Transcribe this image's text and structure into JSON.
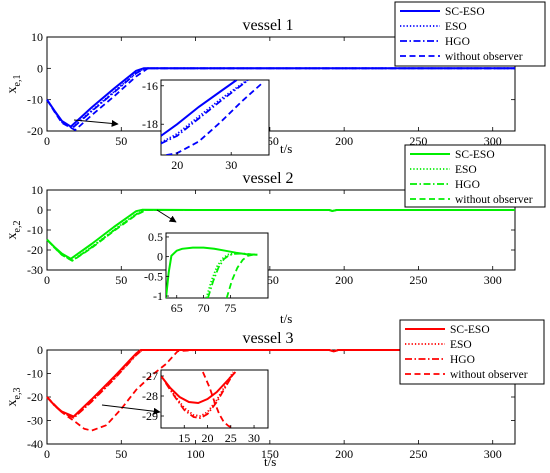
{
  "chart_data": [
    {
      "type": "line",
      "title": "vessel 1",
      "ylabel": "x",
      "ylabel_sub": "e,1",
      "xlabel": "t/s",
      "xlim": [
        0,
        315
      ],
      "ylim": [
        -20,
        10
      ],
      "xticks": [
        0,
        50,
        100,
        150,
        200,
        250,
        300
      ],
      "xtick_labels": [
        "0",
        "50",
        "100",
        "150",
        "200",
        "250",
        "300"
      ],
      "yticks": [
        -20,
        -10,
        0,
        10
      ],
      "color": "#0000ff",
      "series": [
        {
          "name": "SC-ESO",
          "style": "solid",
          "x": [
            0,
            5,
            10,
            16,
            30,
            45,
            60,
            65,
            100,
            200,
            315
          ],
          "y": [
            -10,
            -13.5,
            -16.8,
            -18.6,
            -12.5,
            -6.5,
            -0.8,
            0,
            0,
            0,
            0
          ]
        },
        {
          "name": "ESO",
          "style": "dotted",
          "x": [
            0,
            5,
            10,
            17,
            30,
            45,
            60,
            66,
            100,
            200,
            315
          ],
          "y": [
            -10,
            -13.6,
            -17.1,
            -19.0,
            -13.5,
            -7.5,
            -1.4,
            0,
            0,
            0,
            0
          ]
        },
        {
          "name": "HGO",
          "style": "dashdot",
          "x": [
            0,
            5,
            10,
            17,
            30,
            45,
            60,
            66,
            100,
            200,
            315
          ],
          "y": [
            -10,
            -13.6,
            -17.2,
            -19.1,
            -13.7,
            -7.7,
            -1.6,
            0,
            0,
            0,
            0
          ]
        },
        {
          "name": "without observer",
          "style": "dashed",
          "x": [
            0,
            5,
            10,
            19,
            30,
            45,
            60,
            68,
            100,
            200,
            315
          ],
          "y": [
            -10,
            -13.8,
            -17.4,
            -19.7,
            -15.0,
            -9.0,
            -2.6,
            0,
            0,
            0,
            0
          ]
        }
      ],
      "inset": {
        "xlim": [
          17,
          37
        ],
        "ylim": [
          -19.6,
          -15.7
        ],
        "xticks": [
          20,
          30
        ],
        "yticks": [
          -18,
          -16
        ],
        "series": [
          {
            "name": "SC-ESO",
            "style": "solid",
            "x": [
              17,
              20,
              24,
              28,
              31
            ],
            "y": [
              -18.6,
              -18.0,
              -17.1,
              -16.3,
              -15.7
            ]
          },
          {
            "name": "ESO",
            "style": "dotted",
            "x": [
              17,
              20,
              24,
              28,
              32,
              33
            ],
            "y": [
              -18.95,
              -18.5,
              -17.6,
              -16.7,
              -15.9,
              -15.7
            ]
          },
          {
            "name": "HGO",
            "style": "dashdot",
            "x": [
              17,
              20,
              24,
              28,
              32,
              33.2
            ],
            "y": [
              -19.0,
              -18.6,
              -17.7,
              -16.8,
              -15.95,
              -15.7
            ]
          },
          {
            "name": "without observer",
            "style": "dashed",
            "x": [
              18,
              20,
              24,
              28,
              32,
              36
            ],
            "y": [
              -19.6,
              -19.5,
              -18.9,
              -17.9,
              -16.8,
              -15.8
            ]
          }
        ]
      }
    },
    {
      "type": "line",
      "title": "vessel 2",
      "ylabel": "x",
      "ylabel_sub": "e,2",
      "xlabel": "t/s",
      "xlim": [
        0,
        315
      ],
      "ylim": [
        -30,
        10
      ],
      "xticks": [
        0,
        50,
        100,
        150,
        200,
        250,
        300
      ],
      "xtick_labels": [
        "0",
        "50",
        "100",
        "150",
        "200",
        "250",
        "300"
      ],
      "yticks": [
        -30,
        -20,
        -10,
        0,
        10
      ],
      "color": "#00ee00",
      "series": [
        {
          "name": "SC-ESO",
          "style": "solid",
          "x": [
            0,
            5,
            10,
            16,
            30,
            45,
            60,
            64,
            100,
            190,
            192,
            195,
            315
          ],
          "y": [
            -14.8,
            -18.5,
            -21.8,
            -24.4,
            -17,
            -8.5,
            -0.6,
            0.1,
            0,
            0,
            -0.5,
            0,
            0
          ]
        },
        {
          "name": "ESO",
          "style": "dotted",
          "x": [
            0,
            5,
            10,
            17,
            30,
            45,
            60,
            66,
            100,
            190,
            192,
            195,
            315
          ],
          "y": [
            -14.8,
            -18.7,
            -22.3,
            -25.2,
            -18.5,
            -10,
            -2.0,
            0,
            0,
            0,
            -0.5,
            0,
            0
          ]
        },
        {
          "name": "HGO",
          "style": "dashdot",
          "x": [
            0,
            5,
            10,
            17,
            30,
            45,
            60,
            66,
            100,
            190,
            192,
            195,
            315
          ],
          "y": [
            -14.8,
            -18.7,
            -22.4,
            -25.3,
            -18.7,
            -10.2,
            -2.2,
            0,
            0,
            0,
            -0.5,
            0,
            0
          ]
        },
        {
          "name": "without observer",
          "style": "dashed",
          "x": [
            0,
            5,
            10,
            17,
            30,
            45,
            60,
            67,
            100,
            190,
            192,
            195,
            315
          ],
          "y": [
            -14.8,
            -18.8,
            -22.5,
            -25.4,
            -19.0,
            -10.5,
            -2.5,
            0,
            0,
            0,
            -0.5,
            0,
            0
          ]
        }
      ],
      "inset": {
        "xlim": [
          63,
          82
        ],
        "ylim": [
          -1.05,
          0.6
        ],
        "xticks": [
          65,
          70,
          75
        ],
        "yticks": [
          -1,
          -0.5,
          0,
          0.5
        ],
        "ytick_labels": [
          "-1",
          "-0.5",
          "0",
          "0.5"
        ],
        "series": [
          {
            "name": "SC-ESO",
            "style": "solid",
            "x": [
              63,
              63.5,
              64,
              65,
              66,
              68,
              70,
              72,
              74,
              76,
              78,
              80
            ],
            "y": [
              -1.05,
              -0.4,
              0.02,
              0.15,
              0.2,
              0.23,
              0.23,
              0.2,
              0.15,
              0.1,
              0.06,
              0.05
            ]
          },
          {
            "name": "ESO",
            "style": "dotted",
            "x": [
              70.5,
              71.5,
              72.5,
              73.5,
              74.5,
              75.5,
              77,
              78.5,
              80
            ],
            "y": [
              -1.05,
              -0.6,
              -0.25,
              -0.05,
              0.05,
              0.08,
              0.08,
              0.06,
              0.05
            ]
          },
          {
            "name": "HGO",
            "style": "dashdot",
            "x": [
              70.8,
              71.8,
              72.8,
              73.8,
              74.8,
              75.8,
              77.3,
              78.8,
              80
            ],
            "y": [
              -1.05,
              -0.62,
              -0.27,
              -0.06,
              0.04,
              0.07,
              0.08,
              0.06,
              0.05
            ]
          },
          {
            "name": "without observer",
            "style": "dashed",
            "x": [
              74.3,
              75.3,
              76.3,
              77.3,
              78.3,
              79.3,
              80
            ],
            "y": [
              -1.05,
              -0.6,
              -0.28,
              -0.08,
              0.02,
              0.05,
              0.05
            ]
          }
        ]
      }
    },
    {
      "type": "line",
      "title": "vessel 3",
      "ylabel": "x",
      "ylabel_sub": "e,3",
      "xlabel": "t/s",
      "xlim": [
        0,
        315
      ],
      "ylim": [
        -40,
        0
      ],
      "xticks": [
        0,
        50,
        100,
        150,
        200,
        250,
        300
      ],
      "xtick_labels": [
        "0",
        "50",
        "100",
        "150",
        "200",
        "250",
        "300"
      ],
      "yticks": [
        -40,
        -30,
        -20,
        -10,
        0
      ],
      "color": "#ff0000",
      "series": [
        {
          "name": "SC-ESO",
          "style": "solid",
          "x": [
            0,
            5,
            10,
            18,
            30,
            45,
            60,
            63,
            100,
            190,
            193,
            196,
            315
          ],
          "y": [
            -20,
            -23.5,
            -26.2,
            -28.3,
            -21,
            -11.5,
            -1.5,
            0,
            0,
            0,
            -0.6,
            0,
            0
          ]
        },
        {
          "name": "ESO",
          "style": "dotted",
          "x": [
            0,
            5,
            10,
            18,
            30,
            45,
            60,
            64,
            100,
            190,
            193,
            196,
            315
          ],
          "y": [
            -20,
            -23.6,
            -26.4,
            -28.8,
            -21.8,
            -12.3,
            -2.0,
            0,
            0,
            0,
            -0.6,
            0,
            0
          ]
        },
        {
          "name": "HGO",
          "style": "dashdot",
          "x": [
            0,
            5,
            10,
            18,
            30,
            45,
            60,
            64,
            100,
            190,
            193,
            196,
            315
          ],
          "y": [
            -20,
            -23.6,
            -26.5,
            -28.9,
            -22.0,
            -12.5,
            -2.2,
            0,
            0,
            0,
            -0.6,
            0,
            0
          ]
        },
        {
          "name": "without observer",
          "style": "dashed",
          "x": [
            0,
            10,
            20,
            25,
            30,
            40,
            50,
            60,
            70,
            80,
            88,
            100,
            190,
            193,
            196,
            315
          ],
          "y": [
            -20,
            -26.5,
            -31,
            -33.5,
            -34.3,
            -32,
            -25,
            -17,
            -11,
            -6,
            -0.5,
            0,
            0,
            -0.6,
            0,
            0
          ]
        }
      ],
      "inset": {
        "xlim": [
          10,
          33
        ],
        "ylim": [
          -29.6,
          -26.7
        ],
        "xticks": [
          15,
          20,
          25,
          30
        ],
        "yticks": [
          -29,
          -28,
          -27
        ],
        "series": [
          {
            "name": "SC-ESO",
            "style": "solid",
            "x": [
              10,
              12,
              14,
              16,
              18,
              20,
              22,
              24,
              26
            ],
            "y": [
              -27.0,
              -27.6,
              -28.05,
              -28.3,
              -28.35,
              -28.15,
              -27.8,
              -27.3,
              -26.8
            ]
          },
          {
            "name": "ESO",
            "style": "dotted",
            "x": [
              11,
              13,
              15,
              17,
              18.5,
              20,
              22,
              24,
              25.5
            ],
            "y": [
              -27.3,
              -28.0,
              -28.6,
              -28.95,
              -29.0,
              -28.8,
              -28.2,
              -27.4,
              -26.8
            ]
          },
          {
            "name": "HGO",
            "style": "dashdot",
            "x": [
              11,
              13,
              15,
              17,
              18.5,
              20,
              22,
              24,
              25.5
            ],
            "y": [
              -27.35,
              -28.05,
              -28.7,
              -29.05,
              -29.1,
              -28.9,
              -28.3,
              -27.5,
              -26.9
            ]
          },
          {
            "name": "without observer",
            "style": "dashed",
            "x": [
              19,
              20.5,
              21.5,
              22.5,
              23.5,
              24.5,
              25.5
            ],
            "y": [
              -26.8,
              -27.6,
              -28.3,
              -28.9,
              -29.3,
              -29.5,
              -29.6
            ]
          }
        ]
      }
    }
  ]
}
